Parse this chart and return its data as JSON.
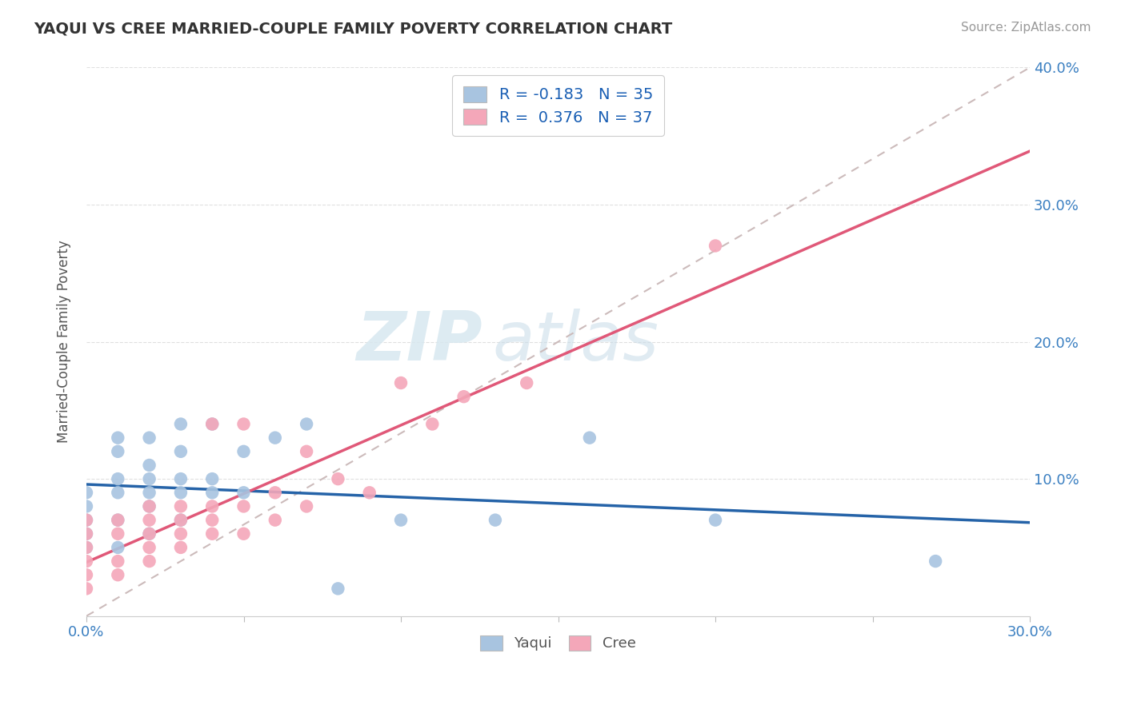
{
  "title": "YAQUI VS CREE MARRIED-COUPLE FAMILY POVERTY CORRELATION CHART",
  "source": "Source: ZipAtlas.com",
  "ylabel": "Married-Couple Family Poverty",
  "xlim": [
    0.0,
    0.3
  ],
  "ylim": [
    0.0,
    0.4
  ],
  "xticks": [
    0.0,
    0.05,
    0.1,
    0.15,
    0.2,
    0.25,
    0.3
  ],
  "xticklabels": [
    "0.0%",
    "",
    "",
    "",
    "",
    "",
    "30.0%"
  ],
  "yticks_right": [
    0.0,
    0.1,
    0.2,
    0.3,
    0.4
  ],
  "yticklabels_right": [
    "",
    "10.0%",
    "20.0%",
    "30.0%",
    "40.0%"
  ],
  "yaqui_color": "#a8c4e0",
  "yaqui_line_color": "#2563a8",
  "cree_color": "#f4a7b9",
  "cree_line_color": "#e05878",
  "yaqui_R": -0.183,
  "yaqui_N": 35,
  "cree_R": 0.376,
  "cree_N": 37,
  "stat_color": "#1a5fb4",
  "watermark_zip": "ZIP",
  "watermark_atlas": "atlas",
  "ref_line_color": "#ccbbbb",
  "grid_color": "#e0e0e0",
  "yaqui_x": [
    0.0,
    0.0,
    0.0,
    0.0,
    0.0,
    0.01,
    0.01,
    0.01,
    0.01,
    0.01,
    0.01,
    0.02,
    0.02,
    0.02,
    0.02,
    0.02,
    0.02,
    0.03,
    0.03,
    0.03,
    0.03,
    0.03,
    0.04,
    0.04,
    0.04,
    0.05,
    0.05,
    0.06,
    0.07,
    0.08,
    0.1,
    0.13,
    0.16,
    0.2,
    0.27
  ],
  "yaqui_y": [
    0.05,
    0.06,
    0.07,
    0.08,
    0.09,
    0.05,
    0.07,
    0.09,
    0.1,
    0.12,
    0.13,
    0.06,
    0.08,
    0.09,
    0.1,
    0.11,
    0.13,
    0.07,
    0.09,
    0.1,
    0.12,
    0.14,
    0.09,
    0.1,
    0.14,
    0.09,
    0.12,
    0.13,
    0.14,
    0.02,
    0.07,
    0.07,
    0.13,
    0.07,
    0.04
  ],
  "cree_x": [
    0.0,
    0.0,
    0.0,
    0.0,
    0.0,
    0.0,
    0.01,
    0.01,
    0.01,
    0.01,
    0.02,
    0.02,
    0.02,
    0.02,
    0.02,
    0.03,
    0.03,
    0.03,
    0.03,
    0.04,
    0.04,
    0.04,
    0.04,
    0.05,
    0.05,
    0.05,
    0.06,
    0.06,
    0.07,
    0.07,
    0.08,
    0.09,
    0.1,
    0.11,
    0.12,
    0.14,
    0.2
  ],
  "cree_y": [
    0.02,
    0.03,
    0.04,
    0.05,
    0.06,
    0.07,
    0.03,
    0.04,
    0.06,
    0.07,
    0.04,
    0.05,
    0.06,
    0.07,
    0.08,
    0.05,
    0.06,
    0.07,
    0.08,
    0.06,
    0.07,
    0.08,
    0.14,
    0.06,
    0.08,
    0.14,
    0.07,
    0.09,
    0.08,
    0.12,
    0.1,
    0.09,
    0.17,
    0.14,
    0.16,
    0.17,
    0.27
  ]
}
